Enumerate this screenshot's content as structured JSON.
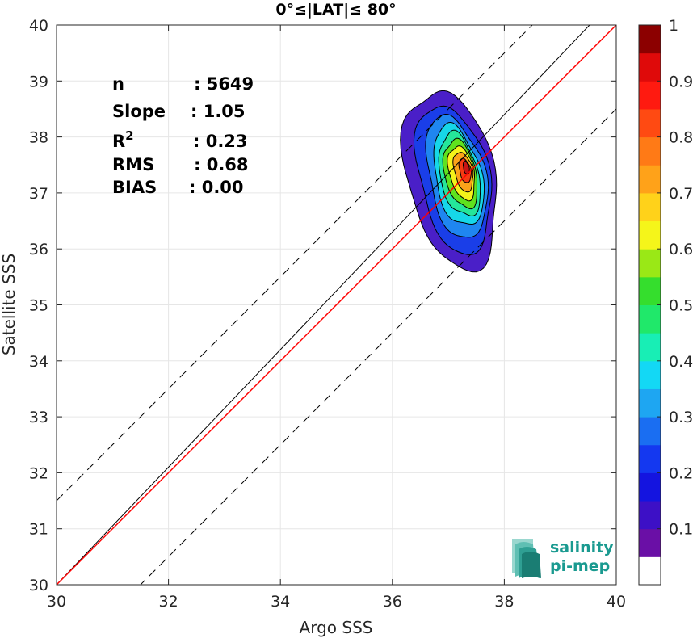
{
  "chart_data": {
    "type": "density_scatter",
    "title": "0°≤|LAT|≤ 80°",
    "xlabel": "Argo SSS",
    "ylabel": "Satellite SSS",
    "xlim": [
      30,
      40
    ],
    "ylim": [
      30,
      40
    ],
    "xticks": [
      30,
      32,
      34,
      36,
      38,
      40
    ],
    "yticks": [
      30,
      31,
      32,
      33,
      34,
      35,
      36,
      37,
      38,
      39,
      40
    ],
    "grid": true,
    "stats": [
      {
        "label": "n",
        "value": ": 5649"
      },
      {
        "label": "Slope",
        "value": ": 1.05"
      },
      {
        "label": "R",
        "sup": "2",
        "value": ": 0.23"
      },
      {
        "label": "RMS",
        "value": ": 0.68"
      },
      {
        "label": "BIAS",
        "value": ": 0.00"
      }
    ],
    "one_to_one": {
      "slope": 1.0,
      "intercept": 0.0
    },
    "offset_lines": [
      {
        "slope": 1.0,
        "intercept": 1.5
      },
      {
        "slope": 1.0,
        "intercept": -1.5
      }
    ],
    "regression": {
      "slope": 1.05,
      "x0": 30,
      "y0": 30,
      "x1": 40,
      "y1": 40.5
    },
    "density_peak": {
      "x": 37.3,
      "y": 37.4
    },
    "contour_levels": [
      {
        "level": 0.05,
        "color": "#4a1fc8",
        "cx": 37.05,
        "cy": 37.25,
        "rx": 0.78,
        "ry": 1.62,
        "tilt": 0.22
      },
      {
        "level": 0.15,
        "color": "#1a3ee8",
        "cx": 37.1,
        "cy": 37.25,
        "rx": 0.62,
        "ry": 1.35,
        "tilt": 0.22
      },
      {
        "level": 0.25,
        "color": "#1f86f0",
        "cx": 37.15,
        "cy": 37.28,
        "rx": 0.5,
        "ry": 1.12,
        "tilt": 0.22
      },
      {
        "level": 0.35,
        "color": "#16d7e8",
        "cx": 37.18,
        "cy": 37.3,
        "rx": 0.41,
        "ry": 0.92,
        "tilt": 0.22
      },
      {
        "level": 0.45,
        "color": "#25e69a",
        "cx": 37.2,
        "cy": 37.32,
        "rx": 0.34,
        "ry": 0.76,
        "tilt": 0.22
      },
      {
        "level": 0.55,
        "color": "#5fe21e",
        "cx": 37.22,
        "cy": 37.34,
        "rx": 0.28,
        "ry": 0.62,
        "tilt": 0.22
      },
      {
        "level": 0.65,
        "color": "#f4f21a",
        "cx": 37.24,
        "cy": 37.36,
        "rx": 0.22,
        "ry": 0.49,
        "tilt": 0.22
      },
      {
        "level": 0.75,
        "color": "#fba31a",
        "cx": 37.27,
        "cy": 37.38,
        "rx": 0.16,
        "ry": 0.36,
        "tilt": 0.22
      },
      {
        "level": 0.85,
        "color": "#f43b12",
        "cx": 37.3,
        "cy": 37.4,
        "rx": 0.1,
        "ry": 0.22,
        "tilt": 0.22
      },
      {
        "level": 0.95,
        "color": "#c91414",
        "cx": 37.32,
        "cy": 37.45,
        "rx": 0.05,
        "ry": 0.12,
        "tilt": 0.22
      }
    ],
    "colorbar": {
      "ticks": [
        0.1,
        0.2,
        0.3,
        0.4,
        0.5,
        0.6,
        0.7,
        0.8,
        0.9,
        1
      ],
      "tick_labels": [
        "0.1",
        "0.2",
        "0.3",
        "0.4",
        "0.5",
        "0.6",
        "0.7",
        "0.8",
        "0.9",
        "1"
      ],
      "colors": [
        "#ffffff",
        "#6a0fa6",
        "#3d10c6",
        "#1414e0",
        "#1438f0",
        "#1a6ef2",
        "#1ea6f2",
        "#13d8f5",
        "#18eeb5",
        "#20e86a",
        "#35de2d",
        "#9ae816",
        "#f5f51a",
        "#ffd21a",
        "#ffa219",
        "#ff7a16",
        "#ff4a12",
        "#ff1a10",
        "#df0a0a",
        "#8c0000"
      ]
    },
    "colors": {
      "one_to_one": "#000000",
      "regression": "#ff0000",
      "offset": "#000000"
    }
  },
  "logo": {
    "line1": "salinity",
    "line2": "pi-mep"
  }
}
